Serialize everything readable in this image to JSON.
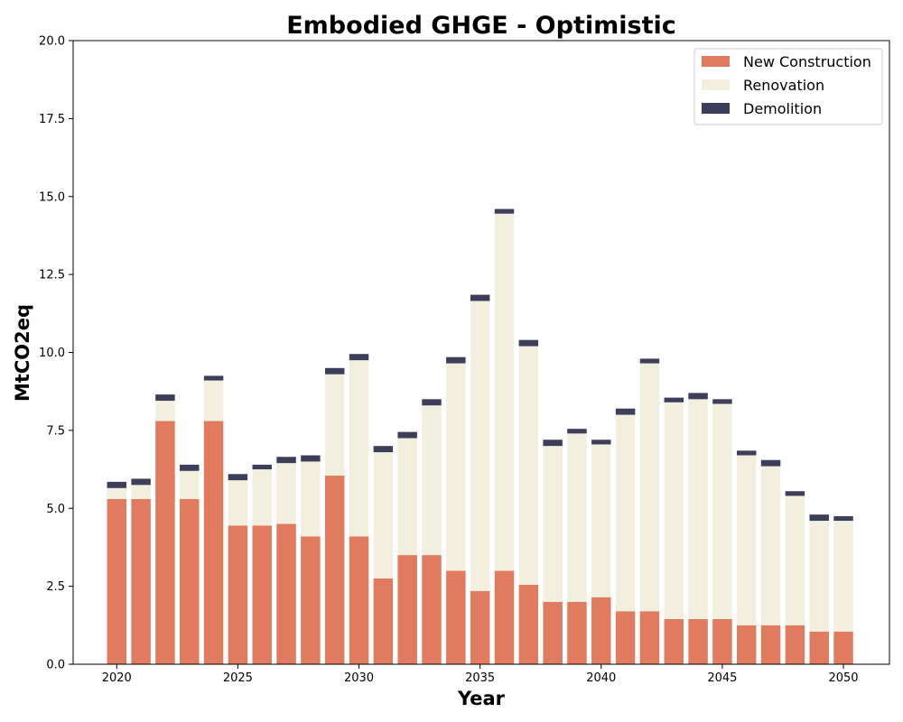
{
  "chart_data": {
    "type": "bar",
    "stacked": true,
    "title": "Embodied GHGE - Optimistic",
    "xlabel": "Year",
    "ylabel": "MtCO2eq",
    "ylim": [
      0,
      20
    ],
    "xlim": [
      2018.2,
      2051.9
    ],
    "x": [
      2020,
      2021,
      2022,
      2023,
      2024,
      2025,
      2026,
      2027,
      2028,
      2029,
      2030,
      2031,
      2032,
      2033,
      2034,
      2035,
      2036,
      2037,
      2038,
      2039,
      2040,
      2041,
      2042,
      2043,
      2044,
      2045,
      2046,
      2047,
      2048,
      2049,
      2050
    ],
    "x_ticks": [
      2020,
      2025,
      2030,
      2035,
      2040,
      2045,
      2050
    ],
    "y_ticks": [
      "0.0",
      "2.5",
      "5.0",
      "7.5",
      "10.0",
      "12.5",
      "15.0",
      "17.5",
      "20.0"
    ],
    "series": [
      {
        "name": "New Construction",
        "color": "#e07b5f",
        "values": [
          5.3,
          5.3,
          7.8,
          5.3,
          7.8,
          4.45,
          4.45,
          4.5,
          4.1,
          6.05,
          4.1,
          2.75,
          3.5,
          3.5,
          3.0,
          2.35,
          3.0,
          2.55,
          2.0,
          2.0,
          2.15,
          1.7,
          1.7,
          1.45,
          1.45,
          1.45,
          1.25,
          1.25,
          1.25,
          1.05,
          1.05
        ]
      },
      {
        "name": "Renovation",
        "color": "#f2efdf",
        "values": [
          0.35,
          0.45,
          0.65,
          0.9,
          1.3,
          1.45,
          1.8,
          1.95,
          2.4,
          3.25,
          5.65,
          4.05,
          3.75,
          4.8,
          6.65,
          9.3,
          11.45,
          7.65,
          5.0,
          5.4,
          4.9,
          6.3,
          7.95,
          6.95,
          7.05,
          6.9,
          5.45,
          5.1,
          4.15,
          3.55,
          3.55
        ]
      },
      {
        "name": "Demolition",
        "color": "#3d3f5a",
        "values": [
          0.2,
          0.2,
          0.2,
          0.2,
          0.15,
          0.2,
          0.15,
          0.2,
          0.2,
          0.2,
          0.2,
          0.2,
          0.2,
          0.2,
          0.2,
          0.2,
          0.15,
          0.2,
          0.2,
          0.15,
          0.15,
          0.2,
          0.15,
          0.15,
          0.2,
          0.15,
          0.15,
          0.2,
          0.15,
          0.2,
          0.15
        ]
      }
    ],
    "legend_position": "top-right",
    "grid": false
  }
}
